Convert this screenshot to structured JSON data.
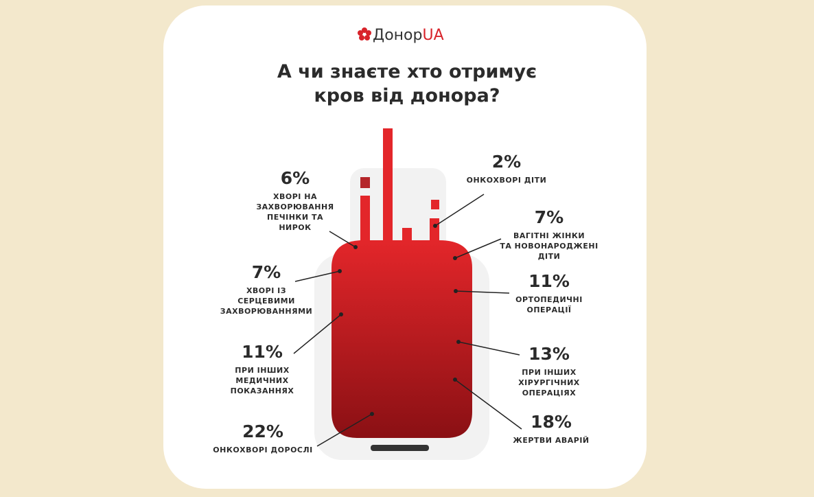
{
  "header": {
    "logo_text": "Донор",
    "logo_accent": "UA",
    "title_lines": [
      "А чи знаєте хто отримує",
      "кров від донора?"
    ]
  },
  "items": [
    {
      "value": "6%",
      "label_lines": [
        "ХВОРІ НА",
        "ЗАХВОРЮВАННЯ",
        "ПЕЧІНКИ ТА",
        "НИРОК"
      ]
    },
    {
      "value": "7%",
      "label_lines": [
        "ХВОРІ ІЗ",
        "СЕРЦЕВИМИ",
        "ЗАХВОРЮВАННЯМИ"
      ]
    },
    {
      "value": "11%",
      "label_lines": [
        "ПРИ ІНШИХ",
        "МЕДИЧНИХ",
        "ПОКАЗАННЯХ"
      ]
    },
    {
      "value": "22%",
      "label_lines": [
        "ОНКОХВОРІ ДОРОСЛІ"
      ]
    },
    {
      "value": "2%",
      "label_lines": [
        "ОНКОХВОРІ ДІТИ"
      ]
    },
    {
      "value": "7%",
      "label_lines": [
        "ВАГІТНІ ЖІНКИ",
        "ТА НОВОНАРОДЖЕНІ",
        "ДІТИ"
      ]
    },
    {
      "value": "11%",
      "label_lines": [
        "ОРТОПЕДИЧНІ",
        "ОПЕРАЦІЇ"
      ]
    },
    {
      "value": "13%",
      "label_lines": [
        "ПРИ ІНШИХ",
        "ХІРУРГІЧНИХ",
        "ОПЕРАЦІЯХ"
      ]
    },
    {
      "value": "18%",
      "label_lines": [
        "ЖЕРТВИ АВАРІЙ"
      ]
    }
  ]
}
